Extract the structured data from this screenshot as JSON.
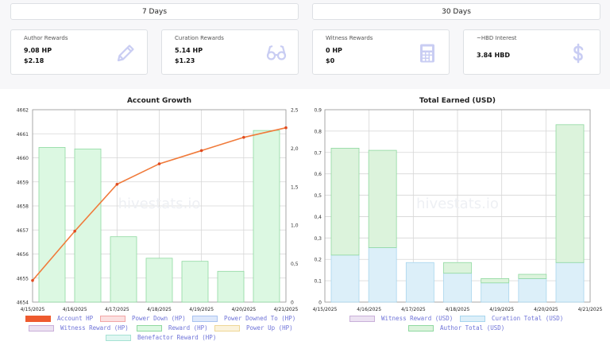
{
  "tabs": [
    {
      "label": "7 Days"
    },
    {
      "label": "30 Days"
    }
  ],
  "cards": [
    {
      "title": "Author Rewards",
      "v1": "9.08 HP",
      "v2": "$2.18",
      "icon": "pencil-icon"
    },
    {
      "title": "Curation Rewards",
      "v1": "5.14 HP",
      "v2": "$1.23",
      "icon": "glasses-icon"
    },
    {
      "title": "Witness Rewards",
      "v1": "0 HP",
      "v2": "$0",
      "icon": "calculator-icon"
    },
    {
      "title": "~HBD Interest",
      "v1": "3.84 HBD",
      "v2": "",
      "icon": "dollar-icon"
    }
  ],
  "watermark": "hivestats.io",
  "colors": {
    "accent_line": "#f07a3a",
    "reward_fill": "#dcf8e2",
    "reward_stroke": "#8fd9a0",
    "curation_fill": "#dceff9",
    "curation_stroke": "#a8d6ee",
    "author_fill": "#dcf3dc",
    "legend_text": "#6f74d8"
  },
  "chart_data": [
    {
      "type": "bar+line",
      "title": "Account Growth",
      "categories": [
        "4/15/2025",
        "4/16/2025",
        "4/17/2025",
        "4/18/2025",
        "4/19/2025",
        "4/20/2025",
        "4/21/2025"
      ],
      "y_left": {
        "min": 4654,
        "max": 4662,
        "ticks": [
          4654,
          4655,
          4656,
          4657,
          4658,
          4659,
          4660,
          4661,
          4662
        ]
      },
      "y_right": {
        "min": 0,
        "max": 2.5,
        "ticks": [
          "0",
          "0,5",
          "1,0",
          "1,5",
          "2,0",
          "2,5"
        ]
      },
      "series": [
        {
          "name": "Account HP",
          "type": "line",
          "axis": "left",
          "values": [
            4654.9,
            4656.95,
            4658.9,
            4659.75,
            4660.3,
            4660.85,
            4661.25
          ]
        },
        {
          "name": "Reward (HP)",
          "type": "bar",
          "axis": "right",
          "values": [
            2.01,
            1.99,
            0.85,
            0.57,
            0.53,
            0.4,
            2.23
          ]
        }
      ],
      "legend": [
        {
          "name": "Account HP",
          "fill": "#ee5a2e",
          "stroke": "#ee5a2e"
        },
        {
          "name": "Power Down (HP)",
          "fill": "#fbe0e0",
          "stroke": "#f2a6a6"
        },
        {
          "name": "Power Downed To (HP)",
          "fill": "#dde8fb",
          "stroke": "#a9c3f0"
        },
        {
          "name": "Witness Reward (HP)",
          "fill": "#ece2f2",
          "stroke": "#c9b0d9"
        },
        {
          "name": "Reward (HP)",
          "fill": "#dcf8e2",
          "stroke": "#8fd9a0"
        },
        {
          "name": "Power Up (HP)",
          "fill": "#fbf3dc",
          "stroke": "#eed796"
        },
        {
          "name": "Benefactor Reward (HP)",
          "fill": "#e0f7f2",
          "stroke": "#a6e2d4"
        }
      ]
    },
    {
      "type": "stacked-bar",
      "title": "Total Earned (USD)",
      "categories": [
        "4/15/2025",
        "4/16/2025",
        "4/17/2025",
        "4/18/2025",
        "4/19/2025",
        "4/20/2025",
        "4/21/2025"
      ],
      "y": {
        "min": 0,
        "max": 0.9,
        "ticks": [
          "0",
          "0,1",
          "0,2",
          "0,3",
          "0,4",
          "0,5",
          "0,6",
          "0,7",
          "0,8",
          "0,9"
        ]
      },
      "series": [
        {
          "name": "Curation Total (USD)",
          "values": [
            0.22,
            0.255,
            0.185,
            0.135,
            0.09,
            0.11,
            0.185
          ]
        },
        {
          "name": "Author Total (USD)",
          "values": [
            0.5,
            0.455,
            0,
            0.05,
            0.02,
            0.02,
            0.645
          ]
        }
      ],
      "legend": [
        {
          "name": "Witness Reward (USD)",
          "fill": "#ece2f2",
          "stroke": "#c9b0d9"
        },
        {
          "name": "Curation Total (USD)",
          "fill": "#dceff9",
          "stroke": "#a8d6ee"
        },
        {
          "name": "Author Total (USD)",
          "fill": "#dcf3dc",
          "stroke": "#8fd9a0"
        }
      ]
    }
  ]
}
